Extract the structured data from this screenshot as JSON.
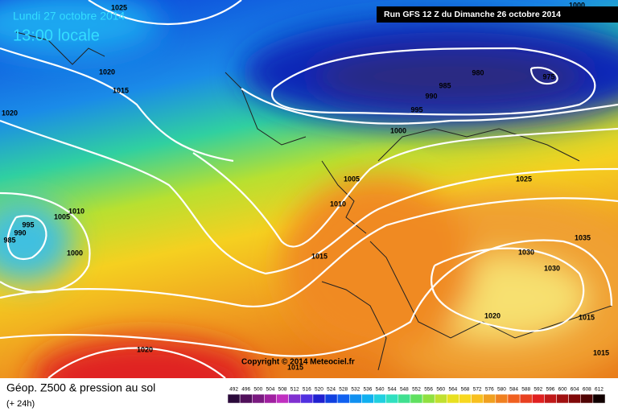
{
  "header": {
    "date": "Lundi 27 octobre 2014",
    "time": "13:00 locale",
    "run": "Run GFS 12 Z du Dimanche 26 octobre 2014"
  },
  "copyright": "Copyright © 2014 Meteociel.fr",
  "footer": {
    "title": "Géop. Z500 & pression au sol",
    "subtitle": "(+ 24h)"
  },
  "scale": [
    492,
    496,
    500,
    504,
    508,
    512,
    516,
    520,
    524,
    528,
    532,
    536,
    540,
    544,
    548,
    552,
    556,
    560,
    564,
    568,
    572,
    576,
    580,
    584,
    588,
    592,
    596,
    600,
    604,
    608,
    612
  ],
  "isobars": [
    1025,
    1020,
    1015,
    1020,
    980,
    975,
    985,
    990,
    995,
    1000,
    1005,
    1010,
    1010,
    1005,
    995,
    990,
    985,
    1000,
    1015,
    1025,
    1035,
    1030,
    1030,
    1020,
    1015,
    1015,
    1020,
    1000,
    1015
  ]
}
